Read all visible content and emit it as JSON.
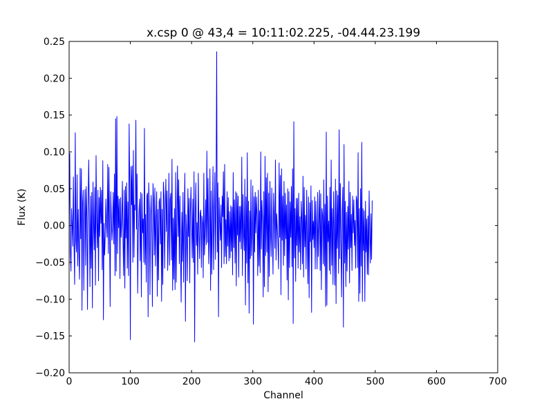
{
  "figure": {
    "background": "#ffffff"
  },
  "chart_data": {
    "type": "line",
    "title": "x.csp 0 @ 43,4 = 10:11:02.225, -04.44.23.199",
    "xlabel": "Channel",
    "ylabel": "Flux (K)",
    "xlim": [
      0,
      700
    ],
    "ylim": [
      -0.2,
      0.25
    ],
    "xticks": [
      0,
      100,
      200,
      300,
      400,
      500,
      600,
      700
    ],
    "xtick_labels": [
      "0",
      "100",
      "200",
      "300",
      "400",
      "500",
      "600",
      "700"
    ],
    "yticks": [
      -0.2,
      -0.15,
      -0.1,
      -0.05,
      0.0,
      0.05,
      0.1,
      0.15,
      0.2,
      0.25
    ],
    "ytick_labels": [
      "−0.20",
      "−0.15",
      "−0.10",
      "−0.05",
      "0.00",
      "0.05",
      "0.10",
      "0.15",
      "0.20",
      "0.25"
    ],
    "grid": false,
    "legend": "none",
    "series": [
      {
        "color": "#0000ff",
        "x_start": 0,
        "x_step": 1,
        "values": [
          0.012,
          0.098,
          -0.034,
          -0.062,
          0.023,
          0.001,
          -0.028,
          0.066,
          -0.026,
          -0.08,
          0.126,
          -0.02,
          -0.036,
          0.069,
          -0.055,
          0.022,
          -0.039,
          -0.073,
          0.078,
          -0.018,
          0.077,
          -0.115,
          0.031,
          0.048,
          -0.088,
          0.008,
          0.049,
          -0.054,
          0.053,
          0.011,
          -0.114,
          0.028,
          0.089,
          0.012,
          -0.083,
          0.04,
          -0.058,
          0.045,
          -0.112,
          0.059,
          0.003,
          -0.033,
          0.052,
          -0.081,
          0.095,
          0.009,
          -0.03,
          0.048,
          -0.075,
          0.038,
          -0.015,
          0.052,
          0.003,
          0.048,
          -0.06,
          0.088,
          -0.128,
          0.003,
          -0.04,
          -0.014,
          0.036,
          0.0,
          -0.016,
          0.083,
          -0.038,
          0.079,
          0.004,
          -0.11,
          0.046,
          0.01,
          -0.02,
          -0.001,
          0.045,
          -0.025,
          0.07,
          -0.068,
          0.145,
          -0.062,
          0.148,
          -0.038,
          0.04,
          -0.003,
          0.036,
          -0.072,
          0.038,
          -0.016,
          0.006,
          0.06,
          -0.02,
          -0.068,
          0.048,
          -0.085,
          0.053,
          -0.017,
          0.058,
          -0.058,
          0.032,
          -0.068,
          0.138,
          0.053,
          -0.155,
          0.08,
          0.028,
          0.081,
          -0.05,
          0.102,
          -0.043,
          0.028,
          0.021,
          0.143,
          -0.005,
          0.07,
          -0.092,
          -0.012,
          0.018,
          0.036,
          -0.048,
          0.045,
          -0.097,
          0.043,
          -0.01,
          0.009,
          -0.05,
          0.132,
          -0.053,
          0.015,
          -0.077,
          0.04,
          0.044,
          -0.124,
          0.058,
          0.022,
          -0.094,
          0.01,
          0.041,
          -0.01,
          -0.11,
          0.057,
          0.034,
          -0.04,
          0.051,
          -0.055,
          0.008,
          0.046,
          -0.096,
          0.022,
          -0.074,
          0.032,
          0.037,
          -0.025,
          0.046,
          -0.103,
          0.022,
          -0.08,
          0.059,
          0.041,
          -0.058,
          0.023,
          0.063,
          -0.008,
          0.047,
          -0.061,
          -0.012,
          0.071,
          -0.054,
          0.035,
          0.044,
          -0.047,
          0.09,
          -0.088,
          0.01,
          -0.073,
          0.023,
          -0.087,
          0.072,
          -0.077,
          0.014,
          0.081,
          -0.015,
          0.062,
          -0.052,
          0.04,
          -0.04,
          -0.104,
          0.018,
          -0.049,
          0.045,
          -0.077,
          0.008,
          0.071,
          -0.13,
          0.015,
          -0.01,
          -0.075,
          0.05,
          -0.015,
          0.037,
          -0.078,
          0.018,
          0.052,
          -0.001,
          -0.044,
          0.036,
          -0.05,
          0.073,
          -0.158,
          0.011,
          0.058,
          -0.027,
          0.004,
          -0.066,
          0.071,
          -0.008,
          -0.045,
          0.016,
          0.021,
          -0.057,
          0.013,
          0.003,
          -0.071,
          0.071,
          -0.04,
          -0.012,
          0.035,
          -0.026,
          0.101,
          -0.023,
          0.064,
          -0.052,
          -0.018,
          0.077,
          -0.088,
          0.047,
          -0.066,
          0.006,
          0.08,
          -0.06,
          0.01,
          0.072,
          -0.046,
          0.033,
          0.236,
          -0.036,
          0.058,
          -0.124,
          0.038,
          0.006,
          -0.02,
          0.028,
          -0.057,
          0.04,
          0.012,
          0.073,
          -0.052,
          0.083,
          -0.042,
          0.008,
          -0.052,
          0.046,
          -0.028,
          0.038,
          -0.048,
          0.019,
          -0.044,
          0.027,
          -0.035,
          0.025,
          -0.067,
          0.072,
          -0.03,
          0.035,
          -0.051,
          0.046,
          -0.082,
          0.044,
          -0.013,
          0.04,
          -0.07,
          0.026,
          -0.022,
          0.026,
          -0.032,
          0.093,
          -0.068,
          0.042,
          -0.012,
          -0.034,
          0.063,
          -0.108,
          0.039,
          -0.051,
          0.099,
          -0.078,
          0.033,
          -0.119,
          0.02,
          -0.045,
          0.062,
          -0.041,
          -0.009,
          0.054,
          -0.134,
          0.039,
          -0.036,
          0.045,
          -0.01,
          0.039,
          0.013,
          -0.068,
          0.048,
          -0.055,
          0.02,
          -0.064,
          0.1,
          -0.032,
          0.034,
          0.006,
          -0.097,
          0.046,
          -0.083,
          0.094,
          -0.041,
          0.065,
          -0.036,
          0.071,
          -0.09,
          0.044,
          -0.069,
          0.06,
          -0.009,
          -0.042,
          0.051,
          -0.012,
          -0.066,
          0.044,
          0.012,
          -0.031,
          0.089,
          -0.047,
          0.016,
          -0.003,
          -0.024,
          -0.059,
          0.085,
          -0.016,
          0.068,
          -0.094,
          0.077,
          -0.02,
          0.04,
          -0.054,
          0.06,
          -0.041,
          0.044,
          -0.018,
          0.028,
          -0.074,
          0.05,
          -0.101,
          0.046,
          -0.057,
          0.032,
          -0.016,
          0.053,
          -0.056,
          0.077,
          -0.133,
          0.141,
          -0.044,
          0.023,
          -0.076,
          0.037,
          -0.027,
          0.037,
          -0.058,
          0.044,
          -0.036,
          0.012,
          -0.06,
          0.033,
          0.008,
          -0.052,
          0.067,
          -0.07,
          0.052,
          -0.029,
          0.014,
          -0.059,
          0.048,
          -0.012,
          -0.079,
          0.039,
          -0.098,
          0.031,
          -0.022,
          0.054,
          -0.118,
          0.034,
          -0.019,
          0.006,
          -0.03,
          0.039,
          -0.059,
          0.033,
          -0.005,
          -0.059,
          0.045,
          -0.042,
          0.006,
          0.048,
          -0.061,
          0.043,
          -0.087,
          0.023,
          0.014,
          -0.052,
          0.062,
          -0.055,
          0.029,
          -0.11,
          0.127,
          -0.108,
          0.04,
          -0.022,
          0.006,
          -0.061,
          0.052,
          -0.066,
          0.089,
          -0.054,
          0.023,
          -0.08,
          0.046,
          -0.004,
          -0.081,
          0.063,
          -0.106,
          0.047,
          -0.031,
          0.041,
          -0.065,
          0.13,
          -0.045,
          0.057,
          -0.026,
          -0.097,
          0.02,
          0.052,
          -0.138,
          0.11,
          -0.051,
          0.033,
          -0.083,
          0.018,
          -0.062,
          0.026,
          -0.032,
          0.06,
          -0.078,
          0.045,
          -0.03,
          0.015,
          -0.061,
          0.04,
          -0.01,
          0.035,
          -0.027,
          0.007,
          -0.058,
          0.04,
          0.034,
          -0.057,
          0.099,
          -0.103,
          0.023,
          -0.092,
          0.05,
          -0.055,
          0.113,
          -0.103,
          0.023,
          -0.034,
          0.02,
          -0.103,
          0.033,
          -0.036,
          0.009,
          -0.066,
          0.013,
          -0.067,
          0.047,
          -0.012,
          -0.051,
          0.016,
          -0.046,
          0.034
        ]
      }
    ]
  }
}
